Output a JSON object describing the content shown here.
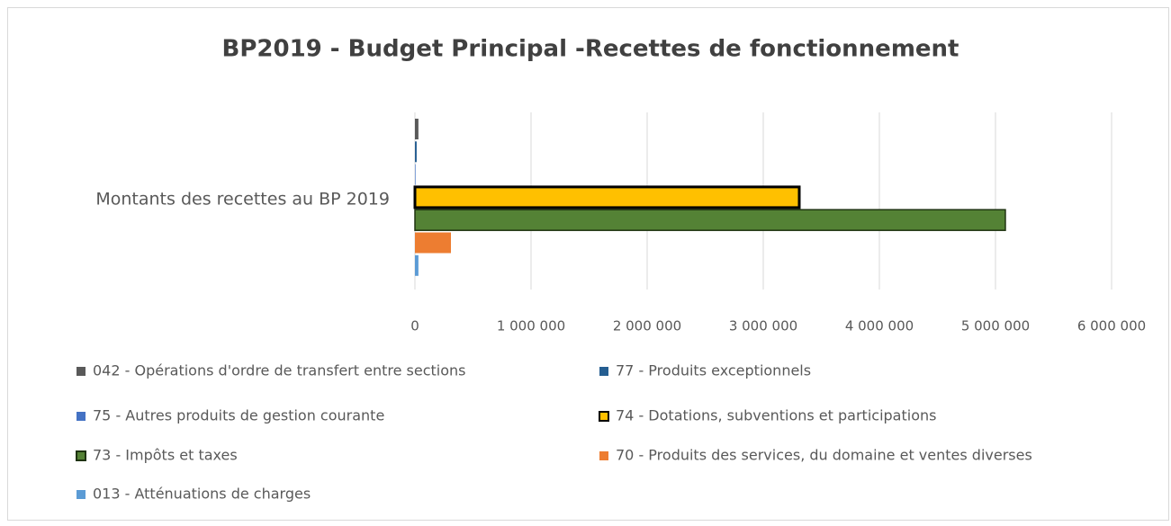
{
  "chart_data": {
    "type": "hbar",
    "title": "BP2019 - Budget Principal -Recettes de fonctionnement",
    "categories": [
      "Montants des recettes au BP 2019"
    ],
    "series": [
      {
        "name": "042 - Opérations d'ordre de transfert entre sections",
        "color": "#595959",
        "values": [
          30000
        ]
      },
      {
        "name": "77 - Produits exceptionnels",
        "color": "#255e91",
        "values": [
          15000
        ]
      },
      {
        "name": "75 - Autres produits de gestion courante",
        "color": "#4472c4",
        "values": [
          5000
        ]
      },
      {
        "name": "74 - Dotations, subventions et participations",
        "color": "#ffc000",
        "border": "#000000",
        "values": [
          3310000
        ]
      },
      {
        "name": "73 - Impôts et taxes",
        "color": "#548235",
        "border": "#1e3310",
        "values": [
          5085000
        ]
      },
      {
        "name": "70 - Produits des services, du domaine et ventes diverses",
        "color": "#ed7d31",
        "values": [
          310000
        ]
      },
      {
        "name": "013 - Atténuations de charges",
        "color": "#5b9bd5",
        "values": [
          30000
        ]
      }
    ],
    "xlim": [
      0,
      6000000
    ],
    "xticks": [
      0,
      {
        "value": 1000000,
        "label": "1 000 000"
      },
      {
        "value": 2000000,
        "label": "2 000 000"
      },
      {
        "value": 3000000,
        "label": "3 000 000"
      },
      {
        "value": 4000000,
        "label": "4 000 000"
      },
      {
        "value": 5000000,
        "label": "5 000 000"
      },
      {
        "value": 6000000,
        "label": "6 000 000"
      }
    ],
    "grid": true
  }
}
